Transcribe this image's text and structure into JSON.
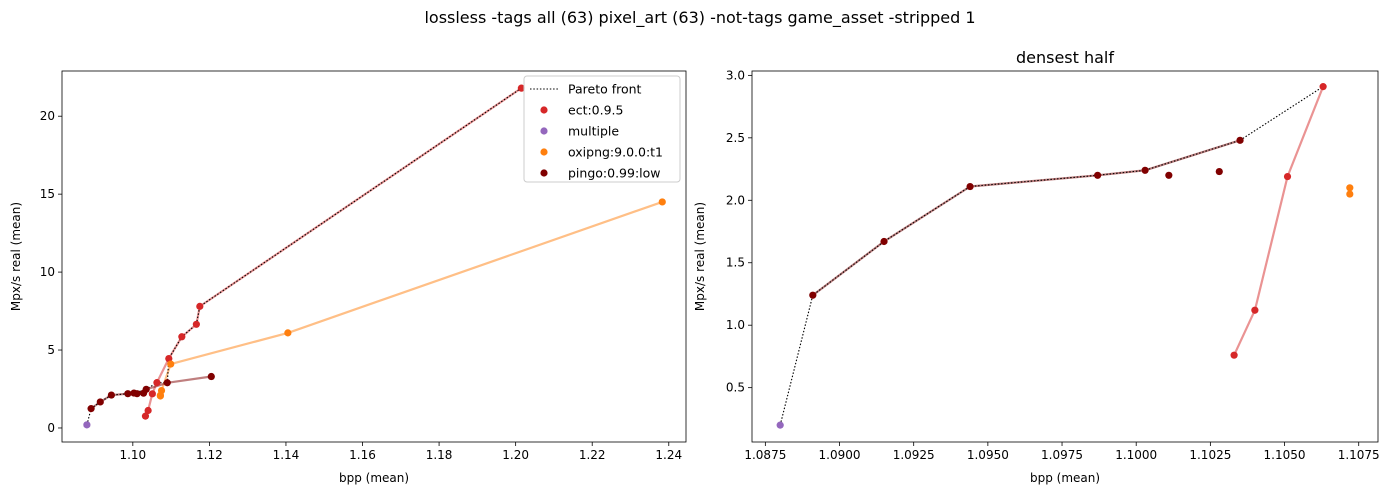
{
  "figure": {
    "suptitle": "lossless -tags all (63) pixel_art (63) -not-tags game_asset -stripped 1"
  },
  "colors": {
    "ect": "#d62728",
    "multiple": "#9467bd",
    "oxipng": "#ff7f0e",
    "pingo": "#800000",
    "pareto": "#000000"
  },
  "chart_data": [
    {
      "type": "scatter",
      "title": "",
      "xlabel": "bpp (mean)",
      "ylabel": "Mpx/s real (mean)",
      "xlim": [
        1.0815,
        1.2445
      ],
      "ylim": [
        -0.9,
        22.9
      ],
      "xticks": [
        1.1,
        1.12,
        1.14,
        1.16,
        1.18,
        1.2,
        1.22,
        1.24
      ],
      "xtick_labels": [
        "1.10",
        "1.12",
        "1.14",
        "1.16",
        "1.18",
        "1.20",
        "1.22",
        "1.24"
      ],
      "yticks": [
        0,
        5,
        10,
        15,
        20
      ],
      "ytick_labels": [
        "0",
        "5",
        "10",
        "15",
        "20"
      ],
      "grid": false,
      "legend": {
        "placement": "top-right",
        "entries": [
          "Pareto front",
          "ect:0.9.5",
          "multiple",
          "oxipng:9.0.0:t1",
          "pingo:0.99:low"
        ]
      },
      "series": [
        {
          "key": "ect",
          "name": "ect:0.9.5",
          "line": true,
          "x": [
            1.1033,
            1.104,
            1.1051,
            1.1063,
            1.1094,
            1.1128,
            1.1166,
            1.1175,
            1.2015
          ],
          "y": [
            0.76,
            1.12,
            2.19,
            2.91,
            4.45,
            5.85,
            6.65,
            7.8,
            21.8
          ]
        },
        {
          "key": "multiple",
          "name": "multiple",
          "line": false,
          "x": [
            1.088
          ],
          "y": [
            0.2
          ]
        },
        {
          "key": "oxipng",
          "name": "oxipng:9.0.0:t1",
          "line": true,
          "x": [
            1.1072,
            1.1072,
            1.1075,
            1.1099,
            1.1405,
            1.2383
          ],
          "y": [
            2.05,
            2.1,
            2.4,
            4.1,
            6.1,
            14.5
          ]
        },
        {
          "key": "pingo",
          "name": "pingo:0.99:low",
          "line": true,
          "x": [
            1.0891,
            1.0915,
            1.0944,
            1.0987,
            1.1003,
            1.1011,
            1.1028,
            1.1035,
            1.109,
            1.1205
          ],
          "y": [
            1.24,
            1.67,
            2.11,
            2.2,
            2.24,
            2.2,
            2.23,
            2.48,
            2.9,
            3.3
          ]
        }
      ],
      "pareto_front": {
        "x": [
          1.088,
          1.0891,
          1.0915,
          1.0944,
          1.0987,
          1.1003,
          1.1035,
          1.1063,
          1.109,
          1.1094,
          1.1128,
          1.1166,
          1.1175,
          1.2015
        ],
        "y": [
          0.2,
          1.24,
          1.67,
          2.11,
          2.2,
          2.24,
          2.48,
          2.91,
          2.9,
          4.45,
          5.85,
          6.65,
          7.8,
          21.8
        ]
      }
    },
    {
      "type": "scatter",
      "title": "densest half",
      "xlabel": "bpp (mean)",
      "ylabel": "Mpx/s real (mean)",
      "xlim": [
        1.08705,
        1.10815
      ],
      "ylim": [
        0.065,
        3.035
      ],
      "xticks": [
        1.0875,
        1.09,
        1.0925,
        1.095,
        1.0975,
        1.1,
        1.1025,
        1.105,
        1.1075
      ],
      "xtick_labels": [
        "1.0875",
        "1.0900",
        "1.0925",
        "1.0950",
        "1.0975",
        "1.1000",
        "1.1025",
        "1.1050",
        "1.1075"
      ],
      "yticks": [
        0.5,
        1.0,
        1.5,
        2.0,
        2.5,
        3.0
      ],
      "ytick_labels": [
        "0.5",
        "1.0",
        "1.5",
        "2.0",
        "2.5",
        "3.0"
      ],
      "grid": false,
      "series": [
        {
          "key": "ect",
          "name": "ect:0.9.5",
          "line": true,
          "x": [
            1.1033,
            1.104,
            1.1051,
            1.1063
          ],
          "y": [
            0.76,
            1.12,
            2.19,
            2.91
          ]
        },
        {
          "key": "multiple",
          "name": "multiple",
          "line": false,
          "x": [
            1.088
          ],
          "y": [
            0.2
          ]
        },
        {
          "key": "oxipng",
          "name": "oxipng:9.0.0:t1",
          "line": true,
          "x": [
            1.1072,
            1.1072
          ],
          "y": [
            2.05,
            2.1
          ]
        },
        {
          "key": "pingo",
          "name": "pingo:0.99:low",
          "line": false,
          "x": [
            1.0891,
            1.0915,
            1.0944,
            1.0987,
            1.1003,
            1.1011,
            1.1028,
            1.1035
          ],
          "y": [
            1.24,
            1.67,
            2.11,
            2.2,
            2.24,
            2.2,
            2.23,
            2.48
          ]
        },
        {
          "key": "pingo_front",
          "name": "",
          "line": true,
          "marker": false,
          "x": [
            1.0891,
            1.0915,
            1.0944,
            1.0987,
            1.1003,
            1.1035
          ],
          "y": [
            1.24,
            1.67,
            2.11,
            2.2,
            2.24,
            2.48
          ]
        }
      ],
      "pareto_front": {
        "x": [
          1.088,
          1.0891,
          1.0915,
          1.0944,
          1.0987,
          1.1003,
          1.1035,
          1.1063
        ],
        "y": [
          0.2,
          1.24,
          1.67,
          2.11,
          2.2,
          2.24,
          2.48,
          2.91
        ]
      }
    }
  ]
}
